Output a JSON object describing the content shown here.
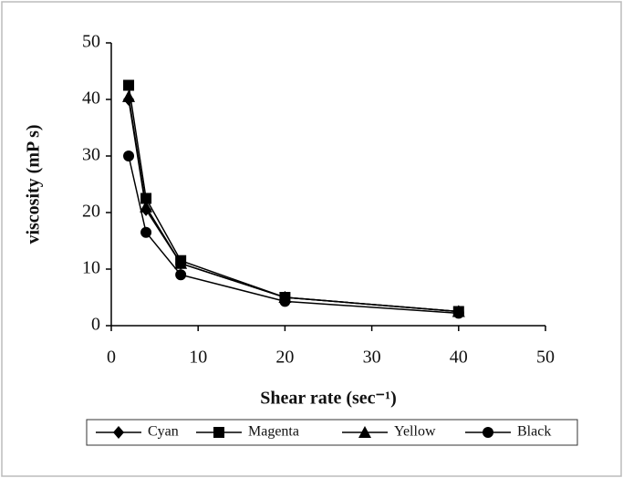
{
  "chart_data": {
    "type": "line",
    "xlabel": "Shear rate (sec⁻¹)",
    "ylabel": "viscosity (mP s)",
    "x": [
      2,
      4,
      8,
      20,
      40
    ],
    "series": [
      {
        "name": "Cyan",
        "color": "#000000",
        "marker": "diamond",
        "values": [
          40,
          20.5,
          11,
          5,
          2.5
        ]
      },
      {
        "name": "Magenta",
        "color": "#000000",
        "marker": "square",
        "values": [
          42.5,
          22.5,
          11.5,
          5,
          2.5
        ]
      },
      {
        "name": "Yellow",
        "color": "#000000",
        "marker": "triangle",
        "values": [
          40.5,
          21,
          11,
          5,
          2.5
        ]
      },
      {
        "name": "Black",
        "color": "#000000",
        "marker": "circle",
        "values": [
          30,
          16.5,
          9,
          4.3,
          2.2
        ]
      }
    ],
    "xlim": [
      0,
      50
    ],
    "xticks": [
      0,
      10,
      20,
      30,
      40,
      50
    ],
    "ylim": [
      0,
      50
    ],
    "yticks": [
      0,
      10,
      20,
      30,
      40,
      50
    ],
    "grid": false,
    "legend": "bottom"
  }
}
